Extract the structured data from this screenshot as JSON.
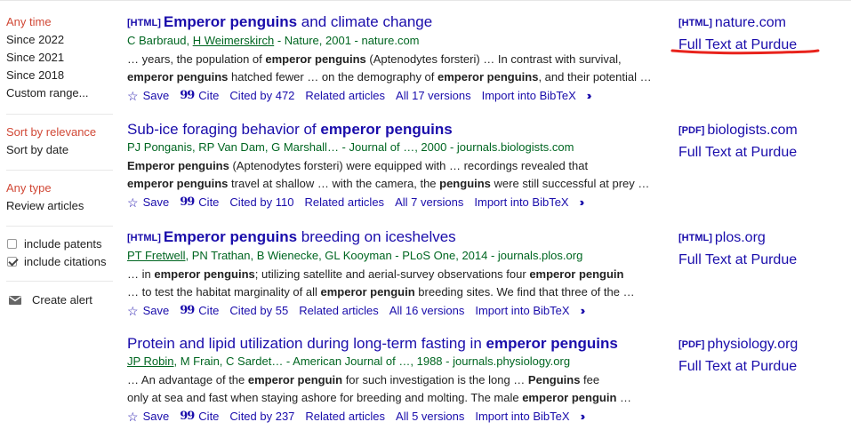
{
  "sidebar": {
    "time": [
      "Any time",
      "Since 2022",
      "Since 2021",
      "Since 2018",
      "Custom range..."
    ],
    "sort": [
      "Sort by relevance",
      "Sort by date"
    ],
    "type": [
      "Any type",
      "Review articles"
    ],
    "include_patents": "include patents",
    "include_citations": "include citations",
    "create_alert": "Create alert"
  },
  "results": [
    {
      "tag": "[HTML]",
      "title_pre": "",
      "title_bold": "Emperor penguins",
      "title_post": " and climate change",
      "author_link": "",
      "author_link2": "H Weimerskirch",
      "authors_a": "C Barbraud, ",
      "authors_b": " - Nature, 2001 - nature.com",
      "snippet1_parts": [
        "… years, the population of ",
        "emperor penguins",
        " (Aptenodytes forsteri) … In contrast with survival,"
      ],
      "snippet2_parts": [
        "emperor penguins",
        " hatched fewer … on the demography of ",
        "emperor penguins",
        ", and their potential …"
      ],
      "cited_by": "Cited by 472",
      "versions": "All 17 versions",
      "side_tag": "[HTML]",
      "side_src": "nature.com",
      "full_text": "Full Text at Purdue"
    },
    {
      "tag": "",
      "title_pre": "Sub-ice foraging behavior of ",
      "title_bold": "emperor penguins",
      "title_post": "",
      "authors_a": "PJ Ponganis, RP Van Dam, G Marshall… - Journal of …, 2000 - journals.biologists.com",
      "snippet1_parts": [
        "",
        "Emperor penguins",
        " (Aptenodytes forsteri) were equipped with … recordings revealed that"
      ],
      "snippet2_parts": [
        "emperor penguins",
        " travel at shallow … with the camera, the ",
        "penguins",
        " were still successful at prey …"
      ],
      "cited_by": "Cited by 110",
      "versions": "All 7 versions",
      "side_tag": "[PDF]",
      "side_src": "biologists.com",
      "full_text": "Full Text at Purdue"
    },
    {
      "tag": "[HTML]",
      "title_pre": "",
      "title_bold": "Emperor penguins",
      "title_post": " breeding on iceshelves",
      "author_link": "PT Fretwell",
      "authors_a": ", PN Trathan, B Wienecke, GL Kooyman - PLoS One, 2014 - journals.plos.org",
      "snippet1_parts": [
        "… in ",
        "emperor penguins",
        "; utilizing satellite and aerial-survey observations four ",
        "emperor penguin",
        ""
      ],
      "snippet2_parts": [
        "… to test the habitat marginality of all ",
        "emperor penguin",
        " breeding sites. We find that three of the …",
        "",
        ""
      ],
      "cited_by": "Cited by 55",
      "versions": "All 16 versions",
      "side_tag": "[HTML]",
      "side_src": "plos.org",
      "full_text": "Full Text at Purdue"
    },
    {
      "tag": "",
      "title_pre": "Protein and lipid utilization during long-term fasting in ",
      "title_bold": "emperor penguins",
      "title_post": "",
      "author_link": "JP Robin",
      "authors_a": ", M Frain, C Sardet… - American Journal of …, 1988 - journals.physiology.org",
      "snippet1_parts": [
        "… An advantage of the ",
        "emperor penguin",
        " for such investigation is the long … ",
        "Penguins",
        " fee"
      ],
      "snippet2_parts": [
        "only at sea and fast when staying ashore for breeding and molting. The male ",
        "emperor penguin",
        " …",
        "",
        ""
      ],
      "cited_by": "Cited by 237",
      "versions": "All 5 versions",
      "side_tag": "[PDF]",
      "side_src": "physiology.org",
      "full_text": "Full Text at Purdue"
    }
  ],
  "actions": {
    "save": "Save",
    "cite": "Cite",
    "related": "Related articles",
    "bibtex": "Import into BibTeX"
  },
  "icons": {
    "save": "star-outline-icon",
    "cite": "quote-icon",
    "more": "double-chevron-right-icon",
    "alert": "mail-icon"
  },
  "colors": {
    "link": "#1a0dab",
    "author": "#006621",
    "active": "#d14836",
    "annotation": "#e8231c"
  }
}
